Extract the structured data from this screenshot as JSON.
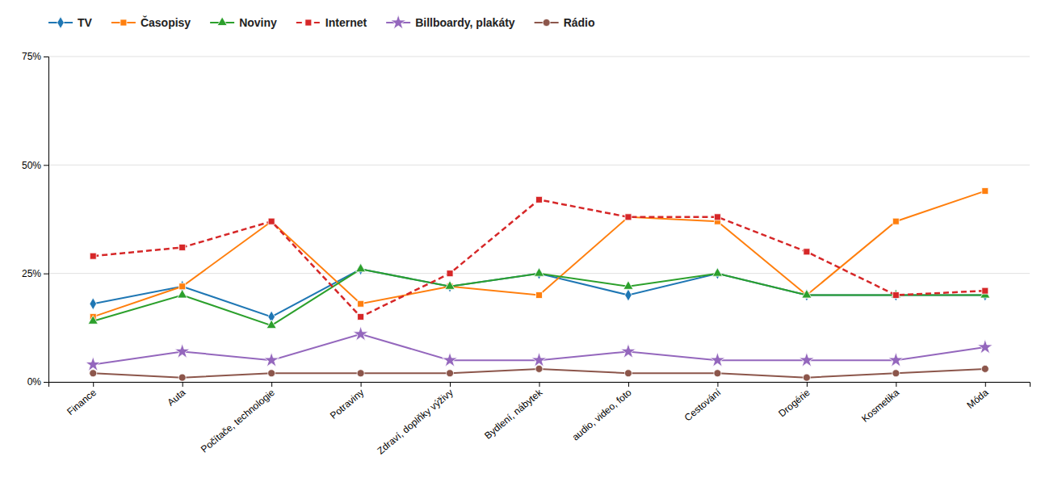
{
  "chart_data": {
    "type": "line",
    "categories": [
      "Finance",
      "Auta",
      "Počítače, technologie",
      "Potraviny",
      "Zdraví, doplňky výživy",
      "Bydlení, nábytek",
      "audio, video, foto",
      "Cestování",
      "Drogérie",
      "Kosmetika",
      "Móda"
    ],
    "series": [
      {
        "name": "TV",
        "marker": "diamond",
        "line_style": "solid",
        "values": [
          18,
          22,
          15,
          26,
          22,
          25,
          20,
          25,
          20,
          20,
          20
        ]
      },
      {
        "name": "Časopisy",
        "marker": "square",
        "line_style": "solid",
        "values": [
          15,
          22,
          37,
          18,
          22,
          20,
          38,
          37,
          20,
          37,
          44
        ]
      },
      {
        "name": "Noviny",
        "marker": "triangle",
        "line_style": "solid",
        "values": [
          14,
          20,
          13,
          26,
          22,
          25,
          22,
          25,
          20,
          20,
          20
        ]
      },
      {
        "name": "Internet",
        "marker": "square",
        "line_style": "dashed",
        "values": [
          29,
          31,
          37,
          15,
          25,
          42,
          38,
          38,
          30,
          20,
          21
        ]
      },
      {
        "name": "Billboardy, plakáty",
        "marker": "star",
        "line_style": "solid",
        "values": [
          4,
          7,
          5,
          11,
          5,
          5,
          7,
          5,
          5,
          5,
          8
        ]
      },
      {
        "name": "Rádio",
        "marker": "circle",
        "line_style": "solid",
        "values": [
          2,
          1,
          2,
          2,
          2,
          3,
          2,
          2,
          1,
          2,
          3
        ]
      }
    ],
    "ylim": [
      0,
      75
    ],
    "yticks": [
      {
        "value": 0,
        "label": "0%"
      },
      {
        "value": 25,
        "label": "25%"
      },
      {
        "value": 50,
        "label": "50%"
      },
      {
        "value": 75,
        "label": "75%"
      }
    ],
    "grid": true,
    "legend": "top"
  }
}
